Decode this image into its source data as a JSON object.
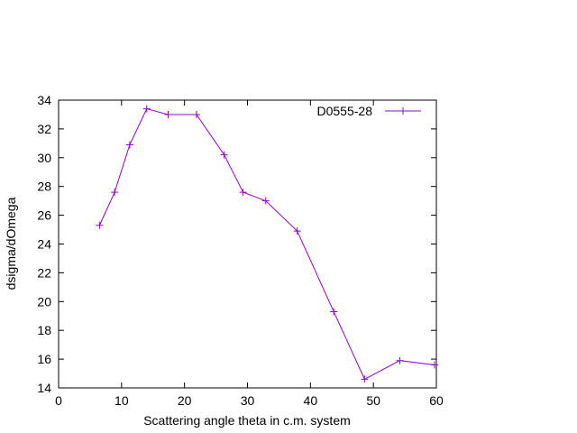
{
  "chart_data": {
    "type": "line",
    "title": "",
    "xlabel": "Scattering angle theta in c.m. system",
    "ylabel": "dsigma/dOmega",
    "xlim": [
      0,
      60
    ],
    "ylim": [
      14,
      34
    ],
    "xticks": [
      0,
      10,
      20,
      30,
      40,
      50,
      60
    ],
    "yticks": [
      14,
      16,
      18,
      20,
      22,
      24,
      26,
      28,
      30,
      32,
      34
    ],
    "grid": false,
    "legend_position": "top-right",
    "series": [
      {
        "name": "D0555-28",
        "color": "#9400d3",
        "marker": "plus",
        "x": [
          6.5,
          8.9,
          11.3,
          14.0,
          17.4,
          21.9,
          26.3,
          29.3,
          32.9,
          37.9,
          43.7,
          48.6,
          54.2,
          59.7
        ],
        "y": [
          25.3,
          27.6,
          30.9,
          33.4,
          33.0,
          33.0,
          30.2,
          27.6,
          27.0,
          24.9,
          19.3,
          14.6,
          15.9,
          15.6
        ]
      }
    ]
  }
}
